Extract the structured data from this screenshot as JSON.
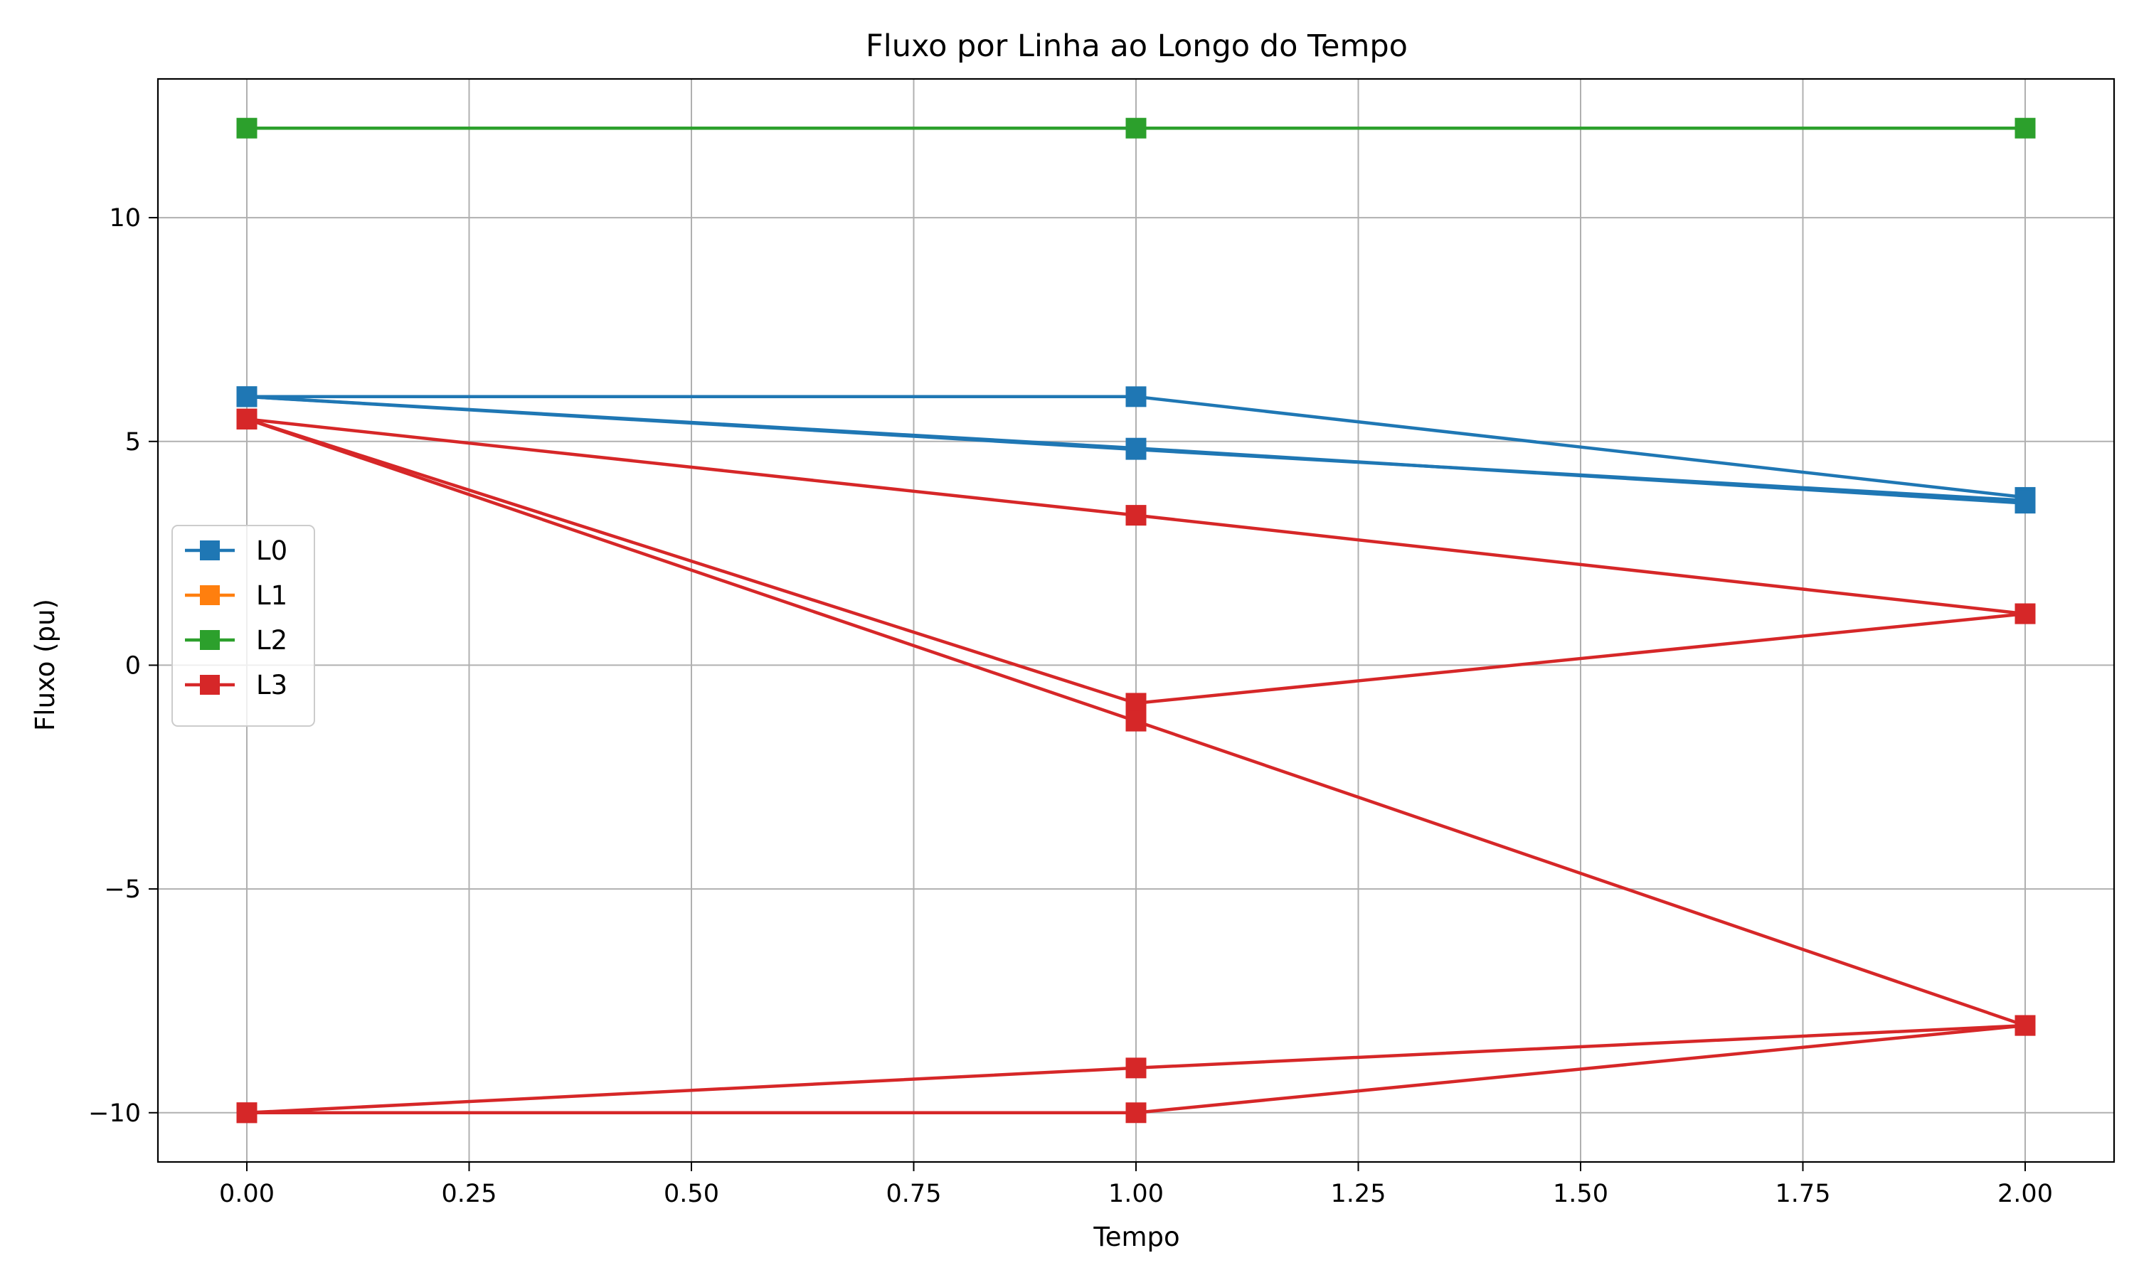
{
  "chart_data": {
    "type": "line",
    "title": "Fluxo por Linha ao Longo do Tempo",
    "xlabel": "Tempo",
    "ylabel": "Fluxo (pu)",
    "xlim": [
      -0.1,
      2.1
    ],
    "ylim": [
      -11.1,
      13.1
    ],
    "x_ticks": [
      0.0,
      0.25,
      0.5,
      0.75,
      1.0,
      1.25,
      1.5,
      1.75,
      2.0
    ],
    "x_tick_labels": [
      "0.00",
      "0.25",
      "0.50",
      "0.75",
      "1.00",
      "1.25",
      "1.50",
      "1.75",
      "2.00"
    ],
    "y_ticks": [
      -10,
      -5,
      0,
      5,
      10
    ],
    "y_tick_labels": [
      "−10",
      "−5",
      "0",
      "5",
      "10"
    ],
    "grid": true,
    "legend_position": "center-left",
    "marker": "square",
    "series": [
      {
        "name": "L0",
        "color": "#1f77b4",
        "lines": [
          {
            "x": [
              0,
              1,
              2
            ],
            "y": [
              6.0,
              6.0,
              3.75
            ]
          },
          {
            "x": [
              0,
              1,
              2
            ],
            "y": [
              6.0,
              4.85,
              3.62
            ]
          },
          {
            "x": [
              0,
              1,
              2
            ],
            "y": [
              6.0,
              4.82,
              3.68
            ]
          }
        ]
      },
      {
        "name": "L1",
        "color": "#ff7f0e",
        "lines": []
      },
      {
        "name": "L2",
        "color": "#2ca02c",
        "lines": [
          {
            "x": [
              0,
              1,
              2
            ],
            "y": [
              12.0,
              12.0,
              12.0
            ]
          }
        ]
      },
      {
        "name": "L3",
        "color": "#d62728",
        "lines": [
          {
            "x": [
              0,
              1,
              2
            ],
            "y": [
              5.5,
              -0.85,
              1.15
            ]
          },
          {
            "x": [
              0,
              1,
              2
            ],
            "y": [
              5.5,
              3.35,
              1.15
            ]
          },
          {
            "x": [
              0,
              1,
              2
            ],
            "y": [
              5.5,
              -1.25,
              -8.05
            ]
          },
          {
            "x": [
              0,
              1,
              2
            ],
            "y": [
              -10.0,
              -10.0,
              -8.05
            ]
          },
          {
            "x": [
              0,
              1,
              2
            ],
            "y": [
              -10.0,
              -9.0,
              -8.05
            ]
          }
        ]
      }
    ]
  }
}
